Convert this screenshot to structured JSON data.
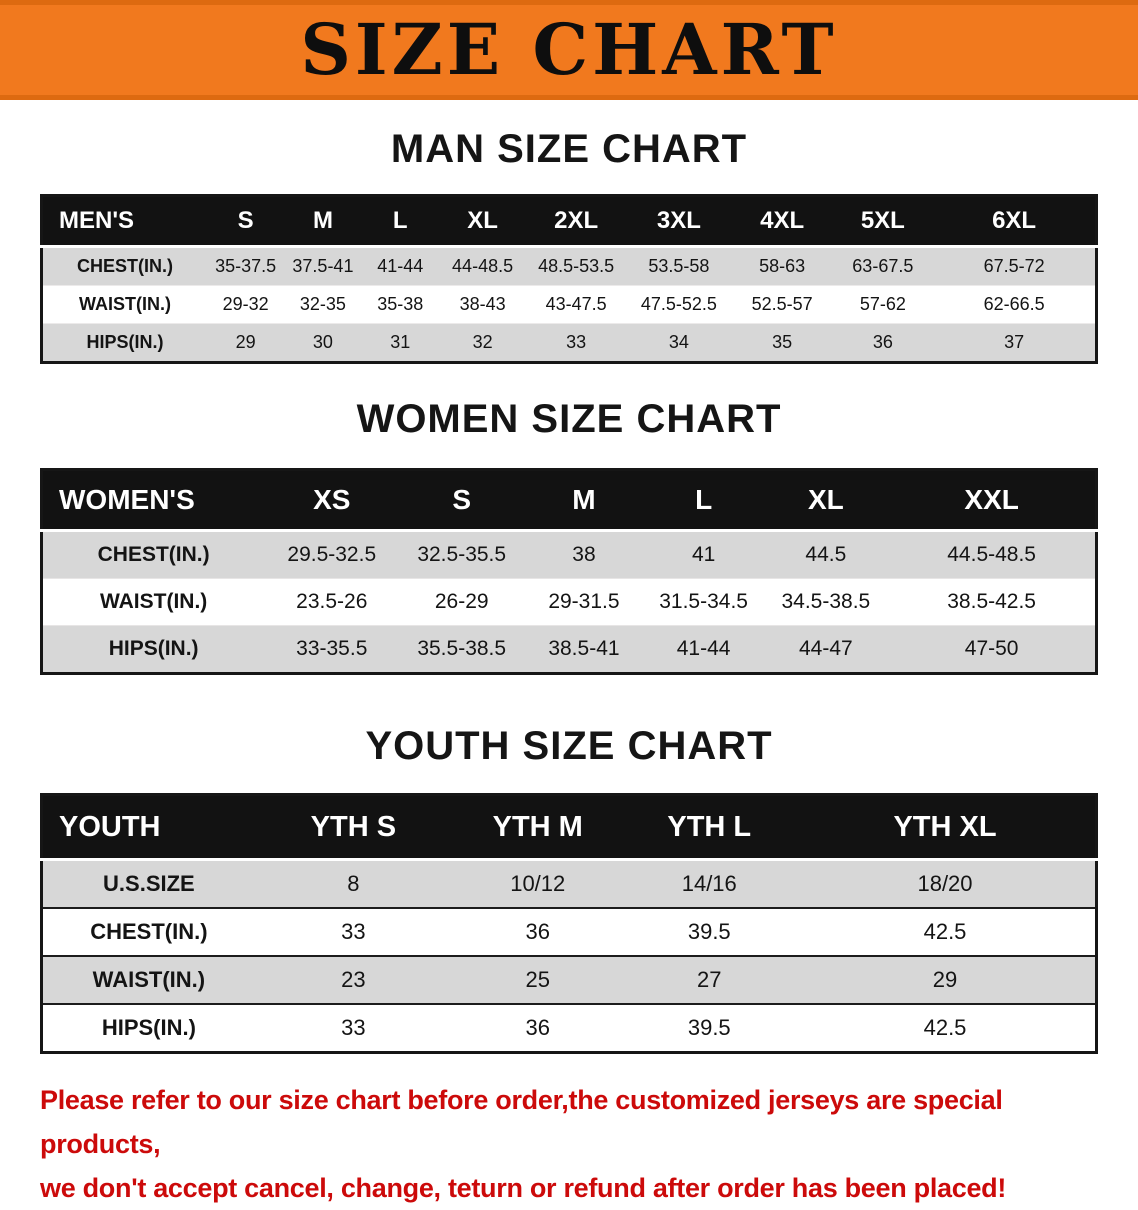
{
  "banner": {
    "title": "SIZE CHART"
  },
  "colors": {
    "banner_bg": "#f1791e",
    "banner_edge": "#dd6a10",
    "table_header_bg": "#121212",
    "row_stripe_gray": "#d7d7d7",
    "disclaimer_red": "#cc0a0a"
  },
  "men": {
    "heading": "MAN SIZE CHART",
    "columns": [
      "MEN'S",
      "S",
      "M",
      "L",
      "XL",
      "2XL",
      "3XL",
      "4XL",
      "5XL",
      "6XL"
    ],
    "rows": [
      {
        "label": "CHEST(IN.)",
        "values": [
          "35-37.5",
          "37.5-41",
          "41-44",
          "44-48.5",
          "48.5-53.5",
          "53.5-58",
          "58-63",
          "63-67.5",
          "67.5-72"
        ]
      },
      {
        "label": "WAIST(IN.)",
        "values": [
          "29-32",
          "32-35",
          "35-38",
          "38-43",
          "43-47.5",
          "47.5-52.5",
          "52.5-57",
          "57-62",
          "62-66.5"
        ]
      },
      {
        "label": "HIPS(IN.)",
        "values": [
          "29",
          "30",
          "31",
          "32",
          "33",
          "34",
          "35",
          "36",
          "37"
        ]
      }
    ]
  },
  "women": {
    "heading": "WOMEN SIZE CHART",
    "columns": [
      "WOMEN'S",
      "XS",
      "S",
      "M",
      "L",
      "XL",
      "XXL"
    ],
    "rows": [
      {
        "label": "CHEST(IN.)",
        "values": [
          "29.5-32.5",
          "32.5-35.5",
          "38",
          "41",
          "44.5",
          "44.5-48.5"
        ]
      },
      {
        "label": "WAIST(IN.)",
        "values": [
          "23.5-26",
          "26-29",
          "29-31.5",
          "31.5-34.5",
          "34.5-38.5",
          "38.5-42.5"
        ]
      },
      {
        "label": "HIPS(IN.)",
        "values": [
          "33-35.5",
          "35.5-38.5",
          "38.5-41",
          "41-44",
          "44-47",
          "47-50"
        ]
      }
    ]
  },
  "youth": {
    "heading": "YOUTH SIZE CHART",
    "columns": [
      "YOUTH",
      "YTH S",
      "YTH M",
      "YTH L",
      "YTH XL"
    ],
    "rows": [
      {
        "label": "U.S.SIZE",
        "values": [
          "8",
          "10/12",
          "14/16",
          "18/20"
        ]
      },
      {
        "label": "CHEST(IN.)",
        "values": [
          "33",
          "36",
          "39.5",
          "42.5"
        ]
      },
      {
        "label": "WAIST(IN.)",
        "values": [
          "23",
          "25",
          "27",
          "29"
        ]
      },
      {
        "label": "HIPS(IN.)",
        "values": [
          "33",
          "36",
          "39.5",
          "42.5"
        ]
      }
    ]
  },
  "disclaimer": {
    "line1": "Please refer to our size chart before order,the customized jerseys are special products,",
    "line2": "we don't accept cancel, change, teturn or refund after order has been placed!"
  }
}
